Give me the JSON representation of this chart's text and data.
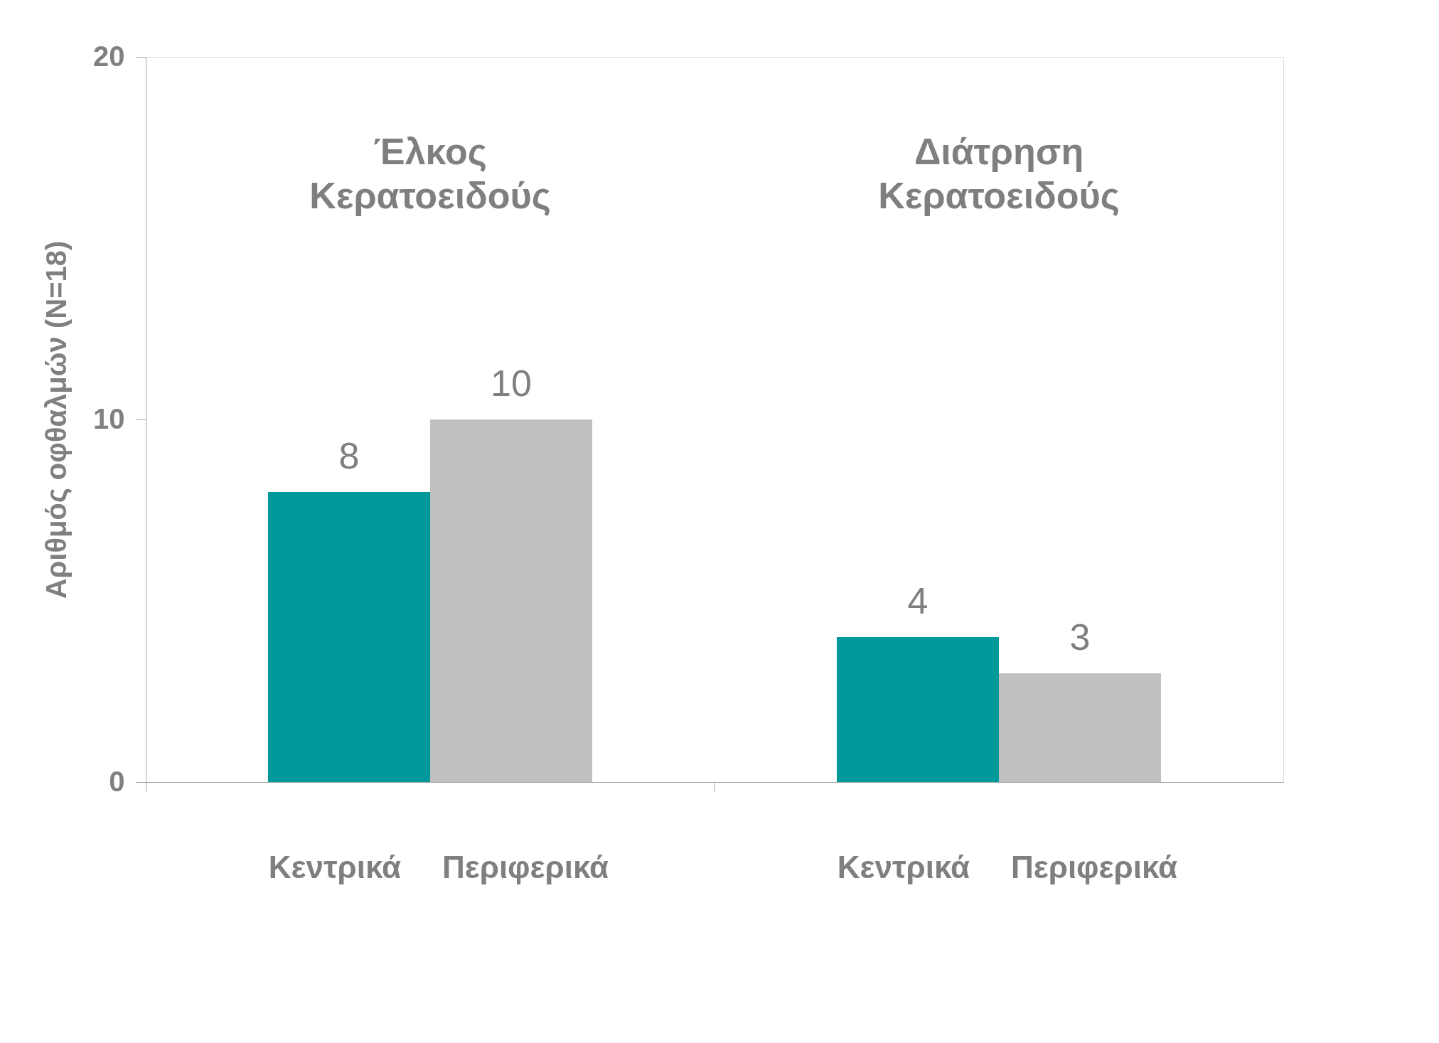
{
  "chart_data": {
    "type": "bar",
    "ylabel": "Αριθμός οφθαλμών (N=18)",
    "categories": [
      "Έλκος\nΚερατοειδούς",
      "Διάτρηση\nΚερατοειδούς"
    ],
    "series": [
      {
        "name": "Κεντρικά",
        "color": "#009999",
        "values": [
          8,
          4
        ]
      },
      {
        "name": "Περιφερικά",
        "color": "#c0c0c0",
        "values": [
          10,
          3
        ]
      }
    ],
    "ylim": [
      0,
      20
    ],
    "yticks": [
      0,
      10,
      20
    ],
    "data_labels": true
  }
}
